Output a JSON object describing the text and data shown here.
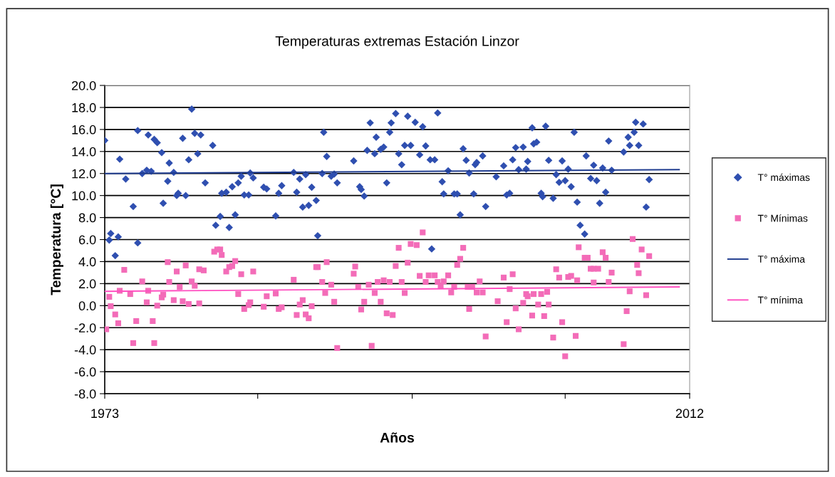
{
  "chart_data": {
    "type": "scatter",
    "title": "Temperaturas extremas Estación Linzor",
    "xlabel": "Años",
    "ylabel": "Temperatura [°C]",
    "xlim": [
      1973,
      2012
    ],
    "xticks": [
      1973,
      {
        "value": 1983.2,
        "label": null
      },
      {
        "value": 1993.5,
        "label": null
      },
      {
        "value": 2003.7,
        "label": null
      },
      2012
    ],
    "ylim": [
      -8,
      20
    ],
    "yticks": [
      {
        "value": -8,
        "label": "-8.0"
      },
      {
        "value": -6,
        "label": "-6.0"
      },
      {
        "value": -4,
        "label": "-4.0"
      },
      {
        "value": -2,
        "label": "-2.0"
      },
      {
        "value": 0,
        "label": "0.0"
      },
      {
        "value": 2,
        "label": "2.0"
      },
      {
        "value": 4,
        "label": "4.0"
      },
      {
        "value": 6,
        "label": "6.0"
      },
      {
        "value": 8,
        "label": "8.0"
      },
      {
        "value": 10,
        "label": "10.0"
      },
      {
        "value": 12,
        "label": "12.0"
      },
      {
        "value": 14,
        "label": "14.0"
      },
      {
        "value": 16,
        "label": "16.0"
      },
      {
        "value": 18,
        "label": "18.0"
      },
      {
        "value": 20,
        "label": "20.0"
      }
    ],
    "grid": "y",
    "legend": "right",
    "series": [
      {
        "name": "T° máximas",
        "marker": "diamond",
        "color": "#2f4fb0",
        "x": [
          1973.0,
          1973.3,
          1973.4,
          1973.9,
          1973.7,
          1974.0,
          1974.4,
          1974.9,
          1975.2,
          1975.2,
          1975.5,
          1975.8,
          1975.9,
          1976.1,
          1976.3,
          1976.5,
          1976.8,
          1976.9,
          1977.2,
          1977.3,
          1977.6,
          1977.8,
          1977.9,
          1978.2,
          1978.4,
          1978.6,
          1978.8,
          1979.0,
          1979.2,
          1979.4,
          1979.7,
          1980.2,
          1980.4,
          1980.7,
          1980.8,
          1981.1,
          1981.3,
          1981.5,
          1981.7,
          1981.9,
          1982.1,
          1982.3,
          1982.6,
          1982.7,
          1982.9,
          1983.6,
          1983.8,
          1984.4,
          1984.6,
          1984.8,
          1985.6,
          1985.8,
          1986.0,
          1986.2,
          1986.4,
          1986.6,
          1986.8,
          1987.1,
          1987.2,
          1987.5,
          1987.6,
          1987.8,
          1988.1,
          1988.3,
          1988.5,
          1989.6,
          1990.0,
          1990.1,
          1990.3,
          1990.5,
          1990.7,
          1991.0,
          1991.1,
          1991.4,
          1991.6,
          1991.8,
          1992.0,
          1992.1,
          1992.4,
          1992.6,
          1992.8,
          1993.0,
          1993.2,
          1993.4,
          1993.7,
          1994.0,
          1994.2,
          1994.4,
          1994.7,
          1994.8,
          1995.0,
          1995.2,
          1995.5,
          1995.6,
          1995.9,
          1996.3,
          1996.5,
          1996.7,
          1996.9,
          1997.1,
          1997.3,
          1997.6,
          1997.7,
          1997.8,
          1998.2,
          1998.4,
          1999.1,
          1999.6,
          1999.8,
          2000.0,
          2000.2,
          2000.4,
          2000.6,
          2000.9,
          2001.1,
          2001.2,
          2001.5,
          2001.6,
          2001.8,
          2002.1,
          2002.2,
          2002.4,
          2002.6,
          2002.9,
          2003.1,
          2003.3,
          2003.5,
          2003.7,
          2003.9,
          2004.1,
          2004.3,
          2004.5,
          2004.7,
          2005.0,
          2005.1,
          2005.4,
          2005.6,
          2005.8,
          2006.0,
          2006.2,
          2006.4,
          2006.6,
          2006.8,
          2007.6,
          2007.9,
          2008.0,
          2008.3,
          2008.4,
          2008.6,
          2008.9,
          2009.1,
          2009.3
        ],
        "values": [
          15.0,
          5.95,
          6.55,
          6.25,
          4.54,
          13.3,
          11.5,
          9.0,
          5.7,
          15.9,
          12.0,
          12.3,
          15.5,
          12.2,
          15.1,
          14.8,
          13.9,
          9.3,
          11.3,
          12.95,
          12.1,
          10.0,
          10.2,
          15.2,
          10.0,
          13.25,
          17.85,
          15.65,
          13.8,
          15.5,
          11.15,
          14.55,
          7.3,
          8.1,
          10.2,
          10.3,
          7.1,
          10.8,
          8.25,
          11.15,
          11.75,
          10.05,
          10.05,
          12.05,
          11.6,
          10.75,
          10.6,
          8.15,
          10.2,
          10.9,
          12.1,
          10.3,
          11.5,
          8.95,
          11.9,
          9.1,
          10.75,
          9.55,
          6.35,
          12.0,
          15.75,
          13.55,
          11.75,
          11.95,
          11.15,
          13.15,
          10.8,
          10.55,
          9.95,
          14.1,
          16.6,
          13.8,
          15.3,
          14.2,
          14.4,
          11.15,
          15.75,
          16.6,
          17.45,
          13.8,
          12.8,
          14.55,
          17.2,
          14.55,
          16.65,
          13.7,
          16.25,
          14.5,
          13.25,
          5.15,
          13.25,
          17.5,
          11.25,
          10.15,
          12.25,
          10.15,
          10.15,
          8.25,
          14.25,
          13.2,
          12.05,
          10.15,
          12.8,
          13.0,
          13.6,
          9.0,
          11.7,
          12.7,
          10.05,
          10.2,
          13.25,
          14.35,
          12.35,
          14.4,
          12.4,
          13.1,
          16.15,
          14.7,
          14.85,
          10.2,
          9.9,
          16.3,
          13.2,
          9.75,
          11.9,
          11.2,
          13.15,
          11.35,
          12.4,
          10.8,
          15.75,
          9.4,
          7.3,
          6.5,
          13.6,
          11.55,
          12.75,
          11.35,
          9.3,
          12.5,
          10.3,
          14.95,
          12.3,
          13.95,
          15.3,
          14.55,
          15.75,
          16.65,
          14.55,
          16.5,
          8.95,
          11.45
        ]
      },
      {
        "name": "T° Mínimas",
        "marker": "square",
        "color": "#f36cb8",
        "x": [
          1973.1,
          1973.3,
          1973.4,
          1973.7,
          1973.9,
          1974.0,
          1974.3,
          1974.7,
          1974.9,
          1975.1,
          1975.5,
          1975.8,
          1975.9,
          1976.2,
          1976.3,
          1976.5,
          1976.8,
          1976.9,
          1977.2,
          1977.3,
          1977.6,
          1977.8,
          1978.0,
          1978.2,
          1978.4,
          1978.6,
          1978.8,
          1979.0,
          1979.3,
          1979.3,
          1979.6,
          1980.3,
          1980.5,
          1980.7,
          1980.8,
          1981.1,
          1981.3,
          1981.5,
          1981.7,
          1981.9,
          1982.1,
          1982.3,
          1982.6,
          1982.7,
          1982.9,
          1983.6,
          1983.8,
          1984.4,
          1984.6,
          1984.8,
          1985.6,
          1985.8,
          1986.0,
          1986.2,
          1986.4,
          1986.6,
          1986.8,
          1987.1,
          1987.2,
          1987.5,
          1987.7,
          1987.8,
          1988.1,
          1988.3,
          1988.5,
          1989.6,
          1989.7,
          1989.9,
          1990.1,
          1990.3,
          1990.6,
          1990.8,
          1991.0,
          1991.2,
          1991.4,
          1991.6,
          1991.8,
          1992.0,
          1992.2,
          1992.4,
          1992.6,
          1992.8,
          1993.0,
          1993.2,
          1993.4,
          1993.8,
          1994.0,
          1994.2,
          1994.4,
          1994.6,
          1995.0,
          1995.2,
          1995.4,
          1995.6,
          1995.9,
          1996.1,
          1996.3,
          1996.5,
          1996.7,
          1996.9,
          1997.2,
          1997.3,
          1997.5,
          1997.8,
          1998.0,
          1998.2,
          1998.4,
          1999.2,
          1999.6,
          1999.8,
          2000.0,
          2000.2,
          2000.4,
          2000.6,
          2000.9,
          2001.1,
          2001.2,
          2001.5,
          2001.6,
          2001.9,
          2002.1,
          2002.3,
          2002.5,
          2002.6,
          2002.9,
          2003.1,
          2003.3,
          2003.5,
          2003.7,
          2003.9,
          2004.1,
          2004.4,
          2004.5,
          2004.6,
          2005.0,
          2005.2,
          2005.4,
          2005.6,
          2005.6,
          2005.9,
          2006.2,
          2006.4,
          2006.6,
          2006.8,
          2007.6,
          2007.8,
          2008.0,
          2008.2,
          2008.5,
          2008.6,
          2008.8,
          2009.1,
          2009.3
        ],
        "values": [
          -2.15,
          0.8,
          -0.05,
          -0.8,
          -1.6,
          1.35,
          3.25,
          1.05,
          -3.4,
          -1.4,
          2.2,
          0.3,
          1.35,
          -1.4,
          -3.4,
          0.0,
          0.75,
          1.0,
          3.95,
          2.15,
          0.5,
          3.1,
          1.7,
          0.4,
          3.65,
          0.15,
          2.2,
          1.8,
          0.2,
          3.3,
          3.2,
          4.9,
          5.1,
          5.1,
          4.6,
          3.1,
          3.5,
          3.6,
          4.05,
          1.05,
          2.85,
          -0.3,
          0.05,
          0.3,
          3.1,
          -0.1,
          0.85,
          1.1,
          -0.3,
          -0.15,
          2.35,
          -0.85,
          0.1,
          0.5,
          -0.8,
          -1.15,
          -0.05,
          3.5,
          3.5,
          2.15,
          1.15,
          3.95,
          1.9,
          0.35,
          -3.85,
          2.9,
          3.55,
          1.7,
          -0.35,
          0.35,
          1.9,
          -3.65,
          1.15,
          2.15,
          0.35,
          2.3,
          -0.7,
          2.15,
          -0.85,
          3.6,
          5.25,
          2.15,
          1.15,
          3.9,
          5.6,
          5.5,
          2.7,
          6.65,
          2.15,
          2.75,
          2.75,
          2.15,
          1.8,
          2.2,
          2.75,
          1.2,
          1.7,
          3.7,
          4.25,
          5.25,
          1.7,
          -0.3,
          1.7,
          1.2,
          2.2,
          1.2,
          -2.8,
          0.4,
          2.55,
          -1.5,
          1.5,
          2.85,
          -0.25,
          -2.15,
          0.25,
          1.05,
          0.85,
          -0.9,
          1.05,
          0.1,
          1.05,
          -0.95,
          1.25,
          0.1,
          -2.9,
          3.3,
          2.55,
          -1.5,
          -4.6,
          2.6,
          2.7,
          -2.75,
          2.3,
          5.3,
          4.35,
          4.35,
          3.35,
          2.1,
          3.35,
          3.35,
          4.85,
          4.35,
          2.15,
          3.0,
          -3.5,
          -0.5,
          1.3,
          6.05,
          3.7,
          2.95,
          5.1,
          0.95,
          4.5
        ]
      },
      {
        "name": "T° máxima",
        "type": "line",
        "marker": "none",
        "color": "#1f3c8f",
        "x": [
          1973,
          2011.3
        ],
        "values": [
          12.0,
          12.35
        ]
      },
      {
        "name": "T° mínima",
        "type": "line",
        "marker": "none",
        "color": "#ff4fc0",
        "x": [
          1973,
          2011.3
        ],
        "values": [
          1.3,
          1.7
        ]
      }
    ]
  }
}
